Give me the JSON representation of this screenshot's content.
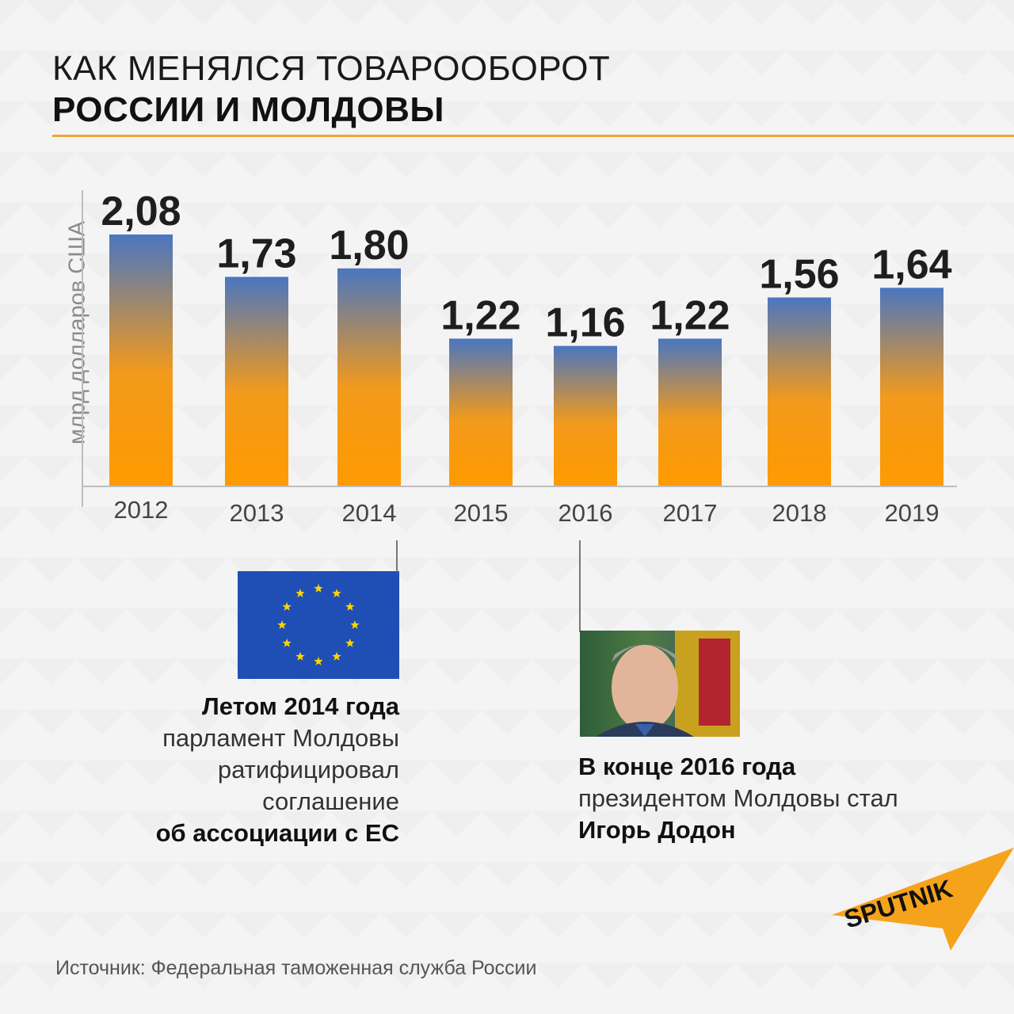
{
  "title": {
    "line1": "КАК МЕНЯЛСЯ ТОВАРООБОРОТ",
    "line2": "РОССИИ И МОЛДОВЫ"
  },
  "chart_data": {
    "type": "bar",
    "categories": [
      "2012",
      "2013",
      "2014",
      "2015",
      "2016",
      "2017",
      "2018",
      "2019"
    ],
    "values": [
      2.08,
      1.73,
      1.8,
      1.22,
      1.16,
      1.22,
      1.56,
      1.64
    ],
    "value_labels": [
      "2,08",
      "1,73",
      "1,80",
      "1,22",
      "1,16",
      "1,22",
      "1,56",
      "1,64"
    ],
    "ylabel": "млрд долларов США",
    "xlabel": "",
    "ylim": [
      0,
      2.08
    ],
    "grid": false,
    "bar_color_top": "#4a76c0",
    "bar_color_bottom": "#ff9a00"
  },
  "notes": {
    "left": {
      "bold_lead": "Летом 2014 года",
      "lines": [
        "парламент Молдовы",
        "ратифицировал",
        "соглашение"
      ],
      "bold_tail": "об ассоциации с ЕС"
    },
    "right": {
      "bold_lead": "В конце 2016 года",
      "line": "президентом Молдовы стал",
      "bold_tail": "Игорь Додон"
    }
  },
  "source": "Источник:  Федеральная таможенная служба России",
  "logo_text": "SPUTNIK",
  "colors": {
    "accent_orange": "#f2a23a",
    "eu_blue": "#1f4fb5",
    "eu_star": "#ffd400",
    "logo_orange": "#f6a31c"
  }
}
